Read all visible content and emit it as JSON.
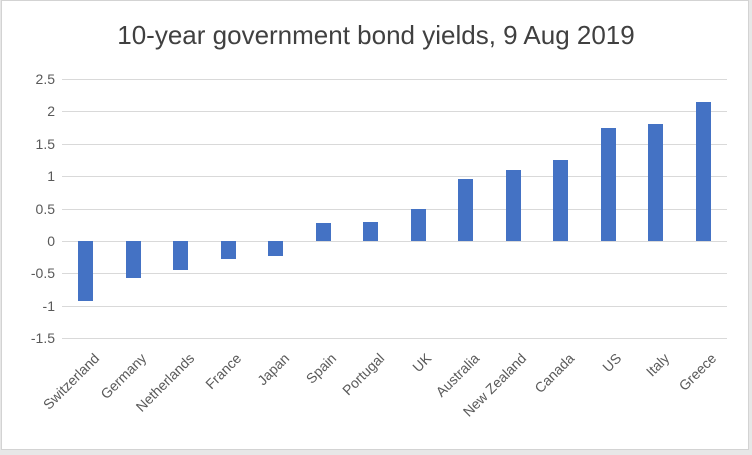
{
  "chart_data": {
    "type": "bar",
    "title": "10-year government bond yields, 9 Aug 2019",
    "categories": [
      "Switzerland",
      "Germany",
      "Netherlands",
      "France",
      "Japan",
      "Spain",
      "Portugal",
      "UK",
      "Australia",
      "New Zealand",
      "Canada",
      "US",
      "Italy",
      "Greece"
    ],
    "values": [
      -0.93,
      -0.57,
      -0.45,
      -0.28,
      -0.24,
      0.27,
      0.29,
      0.49,
      0.95,
      1.1,
      1.25,
      1.74,
      1.81,
      2.14
    ],
    "xlabel": "",
    "ylabel": "",
    "ylim": [
      -1.5,
      2.5
    ],
    "y_ticks": [
      2.5,
      2,
      1.5,
      1,
      0.5,
      0,
      -0.5,
      -1,
      -1.5
    ],
    "y_tick_labels": [
      "2.5",
      "2",
      "1.5",
      "1",
      "0.5",
      "0",
      "-0.5",
      "-1",
      "-1.5"
    ],
    "grid": true,
    "legend": "none",
    "bar_color": "#4472C4",
    "gridline_color": "#D9D9D9",
    "axis_label_color": "#595959",
    "title_color": "#404040"
  }
}
